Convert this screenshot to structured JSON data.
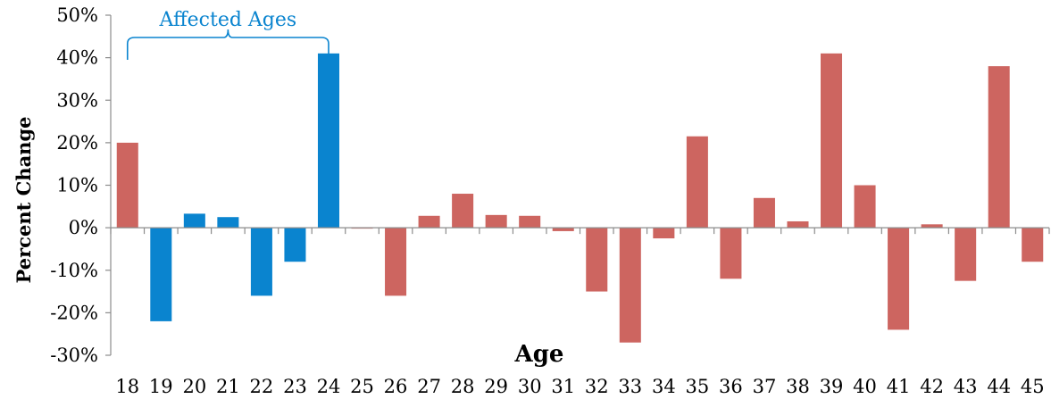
{
  "chart_data": {
    "type": "bar",
    "title": "",
    "xlabel": "Age",
    "ylabel": "Percent Change",
    "ylim": [
      -30,
      50
    ],
    "ytick_values": [
      -30,
      -20,
      -10,
      0,
      10,
      20,
      30,
      40,
      50
    ],
    "ytick_labels": [
      "-30%",
      "-20%",
      "-10%",
      "0%",
      "10%",
      "20%",
      "30%",
      "40%",
      "50%"
    ],
    "categories": [
      "18",
      "19",
      "20",
      "21",
      "22",
      "23",
      "24",
      "25",
      "26",
      "27",
      "28",
      "29",
      "30",
      "31",
      "32",
      "33",
      "34",
      "35",
      "36",
      "37",
      "38",
      "39",
      "40",
      "41",
      "42",
      "43",
      "44",
      "45"
    ],
    "values": [
      20,
      -22,
      3.3,
      2.5,
      -16,
      -8,
      41,
      -0.2,
      -16,
      2.8,
      8,
      3,
      2.8,
      -0.8,
      -15,
      -27,
      -2.5,
      21.5,
      -12,
      7,
      1.5,
      41,
      10,
      -24,
      0.8,
      -12.5,
      38,
      -8
    ],
    "colors": {
      "default": "#cd6560",
      "highlight": "#0a84cf"
    },
    "highlighted_categories": [
      "19",
      "20",
      "21",
      "22",
      "23",
      "24"
    ],
    "annotation": {
      "text": "Affected Ages",
      "from_category": "18",
      "to_category": "24",
      "color": "#0a84cf"
    },
    "grid": false,
    "legend": "none"
  }
}
